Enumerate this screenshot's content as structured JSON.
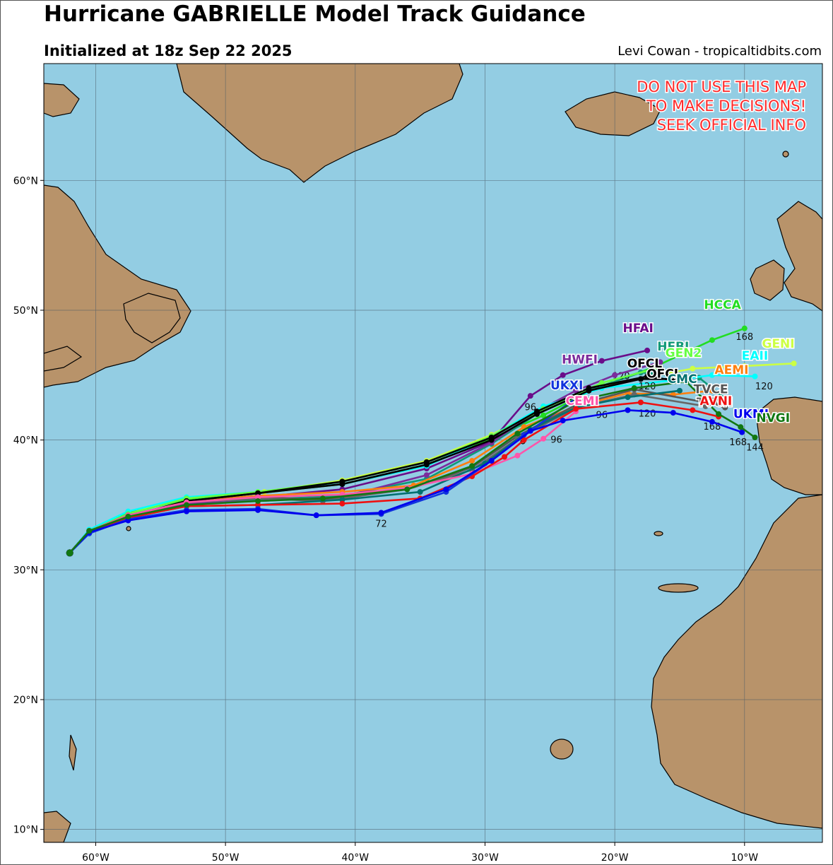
{
  "header": {
    "title": "Hurricane GABRIELLE Model Track Guidance",
    "subtitle": "Initialized at 18z Sep 22 2025",
    "credit": "Levi Cowan - tropicaltidbits.com"
  },
  "warning": {
    "lines": [
      "DO NOT USE THIS MAP",
      "TO MAKE DECISIONS!",
      "SEEK OFFICIAL INFO"
    ],
    "color": "#ff2a2a"
  },
  "colors": {
    "ocean": "#93cde3",
    "land": "#b8936a",
    "coast": "#000000",
    "grid": "#4a5a66"
  },
  "chart_data": {
    "type": "map",
    "lon_range": [
      -64,
      -4
    ],
    "lat_range": [
      9,
      69
    ],
    "grid": true,
    "lon_ticks": [
      {
        "value": -60,
        "label": "60°W"
      },
      {
        "value": -50,
        "label": "50°W"
      },
      {
        "value": -40,
        "label": "40°W"
      },
      {
        "value": -30,
        "label": "30°W"
      },
      {
        "value": -20,
        "label": "20°W"
      },
      {
        "value": -10,
        "label": "10°W"
      }
    ],
    "lat_ticks": [
      {
        "value": 10,
        "label": "10°N"
      },
      {
        "value": 20,
        "label": "20°N"
      },
      {
        "value": 30,
        "label": "30°N"
      },
      {
        "value": 40,
        "label": "40°N"
      },
      {
        "value": 50,
        "label": "50°N"
      },
      {
        "value": 60,
        "label": "60°N"
      }
    ],
    "series": [
      {
        "name": "HCCA",
        "color": "#22dd22",
        "points": [
          [
            -62,
            31.3
          ],
          [
            -60.5,
            33
          ],
          [
            -57.5,
            34.4
          ],
          [
            -53,
            35.4
          ],
          [
            -47.5,
            35.9
          ],
          [
            -41,
            36.6
          ],
          [
            -34.5,
            38.1
          ],
          [
            -29.5,
            40.1
          ],
          [
            -25.5,
            41.9
          ],
          [
            -21.5,
            44
          ],
          [
            -17,
            45.6
          ],
          [
            -12.5,
            47.7
          ],
          [
            -10,
            48.6
          ]
        ],
        "labels": [
          {
            "lon": -10,
            "lat": 47.7,
            "text": "168"
          }
        ],
        "name_pos": [
          -11.7,
          50.1
        ]
      },
      {
        "name": "GENI",
        "color": "#ccff44",
        "points": [
          [
            -62,
            31.3
          ],
          [
            -60.5,
            33
          ],
          [
            -57.5,
            34.3
          ],
          [
            -53,
            35.6
          ],
          [
            -47,
            36
          ],
          [
            -41,
            36.9
          ],
          [
            -34.5,
            38.4
          ],
          [
            -29.5,
            40.4
          ],
          [
            -25.5,
            42.5
          ],
          [
            -20,
            44.4
          ],
          [
            -14,
            45.5
          ],
          [
            -10,
            45.7
          ],
          [
            -6.2,
            45.9
          ]
        ],
        "labels": [],
        "name_pos": [
          -7.4,
          47.1
        ]
      },
      {
        "name": "HFAI",
        "color": "#6a0d8a",
        "points": [
          [
            -62,
            31.3
          ],
          [
            -60.5,
            33
          ],
          [
            -57.5,
            34.2
          ],
          [
            -53,
            35.2
          ],
          [
            -47.5,
            35.6
          ],
          [
            -41,
            36.2
          ],
          [
            -34.5,
            37.8
          ],
          [
            -29.5,
            39.9
          ],
          [
            -26.5,
            43.4
          ],
          [
            -24,
            45
          ],
          [
            -21,
            46.1
          ],
          [
            -17.5,
            46.9
          ]
        ],
        "labels": [
          {
            "lon": -26.5,
            "lat": 42.3,
            "text": "96"
          }
        ],
        "name_pos": [
          -18.2,
          48.3
        ]
      },
      {
        "name": "HFBI",
        "color": "#119977",
        "points": [
          [
            -62,
            31.3
          ],
          [
            -60.5,
            33
          ],
          [
            -57.5,
            34.1
          ],
          [
            -53,
            35
          ],
          [
            -47.5,
            35.4
          ],
          [
            -41,
            35.7
          ],
          [
            -34.5,
            37
          ],
          [
            -29.5,
            39.7
          ],
          [
            -26,
            42
          ],
          [
            -22,
            43.8
          ],
          [
            -18,
            45.2
          ],
          [
            -13.5,
            44.8
          ],
          [
            -11.5,
            43.2
          ]
        ],
        "labels": [
          {
            "lon": -19.5,
            "lat": 44.7,
            "text": "120"
          }
        ],
        "name_pos": [
          -15.5,
          46.9
        ]
      },
      {
        "name": "HWFI",
        "color": "#7b2c9c",
        "points": [
          [
            -62,
            31.3
          ],
          [
            -60.5,
            33
          ],
          [
            -57.5,
            34.1
          ],
          [
            -53,
            35.1
          ],
          [
            -47.5,
            35.3
          ],
          [
            -41,
            35.6
          ],
          [
            -34.5,
            37.3
          ],
          [
            -29.5,
            39.8
          ],
          [
            -26,
            42.2
          ],
          [
            -23,
            43.8
          ],
          [
            -20,
            45
          ],
          [
            -16.5,
            46
          ]
        ],
        "labels": [],
        "name_pos": [
          -22.7,
          45.9
        ]
      },
      {
        "name": "AEMI",
        "color": "#ff7f0e",
        "points": [
          [
            -62,
            31.3
          ],
          [
            -60.5,
            33
          ],
          [
            -57.5,
            34.1
          ],
          [
            -53,
            35.3
          ],
          [
            -47.5,
            35.7
          ],
          [
            -41,
            36
          ],
          [
            -35.5,
            36.5
          ],
          [
            -31,
            38.4
          ],
          [
            -27,
            41
          ],
          [
            -23,
            42.6
          ],
          [
            -19,
            43.6
          ],
          [
            -15.5,
            43.5
          ],
          [
            -12.5,
            43.8
          ]
        ],
        "labels": [
          {
            "lon": -21,
            "lat": 41.7,
            "text": "96"
          }
        ],
        "name_pos": [
          -11,
          45.1
        ]
      },
      {
        "name": "EAII",
        "color": "#00ffff",
        "points": [
          [
            -62,
            31.3
          ],
          [
            -60.5,
            33.1
          ],
          [
            -57.5,
            34.5
          ],
          [
            -53,
            35.6
          ],
          [
            -47.5,
            36
          ],
          [
            -41,
            36.6
          ],
          [
            -34.5,
            38
          ],
          [
            -29.5,
            40.3
          ],
          [
            -25.5,
            42.6
          ],
          [
            -21,
            44
          ],
          [
            -15.5,
            44.6
          ],
          [
            -12.5,
            45
          ],
          [
            -9.2,
            44.9
          ]
        ],
        "labels": [
          {
            "lon": -8.5,
            "lat": 43.9,
            "text": "120"
          }
        ],
        "name_pos": [
          -9.2,
          46.2
        ]
      },
      {
        "name": "GEN2",
        "color": "#66ff44",
        "points": [
          [
            -62,
            31.3
          ],
          [
            -60.5,
            33
          ],
          [
            -57.5,
            34.3
          ],
          [
            -53,
            35.5
          ],
          [
            -47.5,
            36
          ],
          [
            -41,
            36.8
          ],
          [
            -34.5,
            38.3
          ],
          [
            -29.5,
            40.3
          ],
          [
            -25.5,
            42.4
          ],
          [
            -21,
            44.4
          ],
          [
            -16.5,
            45.6
          ]
        ],
        "labels": [],
        "name_pos": [
          -14.7,
          46.4
        ]
      },
      {
        "name": "OFCL",
        "color": "#000000",
        "points": [
          [
            -62,
            31.3
          ],
          [
            -60.5,
            33
          ],
          [
            -57.5,
            34.1
          ],
          [
            -53,
            35.3
          ],
          [
            -47.5,
            35.9
          ],
          [
            -41,
            36.6
          ],
          [
            -34.5,
            38.1
          ],
          [
            -29.5,
            40
          ],
          [
            -26,
            42
          ],
          [
            -22,
            43.8
          ],
          [
            -18,
            44.7
          ],
          [
            -14.8,
            44.7
          ]
        ],
        "labels": [
          {
            "lon": -17.5,
            "lat": 43.9,
            "text": "120"
          }
        ],
        "name_pos": [
          -17.7,
          45.6
        ]
      },
      {
        "name": "OFCL",
        "color": "#000000",
        "points": [
          [
            -62,
            31.3
          ],
          [
            -60.5,
            33
          ],
          [
            -57.5,
            34.1
          ],
          [
            -53,
            35.3
          ],
          [
            -47.5,
            35.9
          ],
          [
            -41,
            36.8
          ],
          [
            -34.5,
            38.3
          ],
          [
            -29.5,
            40.2
          ],
          [
            -26,
            42.2
          ],
          [
            -22,
            44
          ],
          [
            -17.5,
            44.9
          ],
          [
            -15.5,
            44.6
          ]
        ],
        "labels": [],
        "name_pos": [
          -16.2,
          44.8
        ]
      },
      {
        "name": "TVCE",
        "color": "#555555",
        "points": [
          [
            -62,
            31.3
          ],
          [
            -60.5,
            33
          ],
          [
            -57.5,
            34.2
          ],
          [
            -53,
            35.2
          ],
          [
            -47.5,
            35.6
          ],
          [
            -42.5,
            35.4
          ],
          [
            -36,
            36.2
          ],
          [
            -31,
            37.9
          ],
          [
            -27.5,
            40.3
          ],
          [
            -23,
            42.7
          ],
          [
            -18.5,
            43.9
          ],
          [
            -13,
            42.9
          ],
          [
            -11.5,
            42.5
          ]
        ],
        "labels": [
          {
            "lon": -17.5,
            "lat": 41.8,
            "text": "120"
          }
        ],
        "name_pos": [
          -12.6,
          43.6
        ]
      },
      {
        "name": "TVCN",
        "color": "#666666",
        "points": [
          [
            -62,
            31.3
          ],
          [
            -60.5,
            33
          ],
          [
            -57.5,
            34.2
          ],
          [
            -53,
            35.2
          ],
          [
            -47.5,
            35.5
          ],
          [
            -42.5,
            35.3
          ],
          [
            -36,
            36.2
          ],
          [
            -31,
            37.7
          ],
          [
            -27.5,
            40.1
          ],
          [
            -23,
            42.5
          ],
          [
            -18.5,
            43.5
          ],
          [
            -13,
            42.6
          ]
        ],
        "labels": [],
        "name_pos": [
          -12.3,
          42.6
        ]
      },
      {
        "name": "CMC",
        "color": "#007070",
        "points": [
          [
            -62,
            31.3
          ],
          [
            -60.5,
            33
          ],
          [
            -57.5,
            34
          ],
          [
            -53,
            34.9
          ],
          [
            -47.5,
            35
          ],
          [
            -41,
            35.4
          ],
          [
            -35,
            36
          ],
          [
            -30,
            38.2
          ],
          [
            -26.5,
            40.8
          ],
          [
            -23,
            42.5
          ],
          [
            -19,
            43.3
          ],
          [
            -15,
            43.8
          ]
        ],
        "labels": [],
        "name_pos": [
          -14.8,
          44.4
        ]
      },
      {
        "name": "CEMI",
        "color": "#ff55aa",
        "points": [
          [
            -62,
            31.3
          ],
          [
            -60.5,
            33
          ],
          [
            -57.5,
            34.2
          ],
          [
            -53,
            35.2
          ],
          [
            -47.5,
            35.6
          ],
          [
            -41,
            35.8
          ],
          [
            -36,
            36.3
          ],
          [
            -31,
            37.4
          ],
          [
            -27.5,
            38.8
          ],
          [
            -25.5,
            40.1
          ],
          [
            -23,
            42.2
          ]
        ],
        "labels": [
          {
            "lon": -24.5,
            "lat": 39.8,
            "text": "96"
          }
        ],
        "name_pos": [
          -22.5,
          42.7
        ]
      },
      {
        "name": "AVNI",
        "color": "#ee1111",
        "points": [
          [
            -62,
            31.3
          ],
          [
            -60.5,
            33
          ],
          [
            -57.5,
            34
          ],
          [
            -53,
            34.9
          ],
          [
            -47.5,
            35
          ],
          [
            -41,
            35.1
          ],
          [
            -35,
            35.5
          ],
          [
            -31,
            37.2
          ],
          [
            -28.5,
            38.7
          ],
          [
            -27,
            40
          ],
          [
            -23,
            42.4
          ],
          [
            -18,
            42.9
          ],
          [
            -14,
            42.3
          ],
          [
            -12,
            41.8
          ]
        ],
        "labels": [
          {
            "lon": -12.5,
            "lat": 40.8,
            "text": "168"
          }
        ],
        "name_pos": [
          -12.2,
          42.7
        ]
      },
      {
        "name": "UKXI",
        "color": "#1133dd",
        "points": [
          [
            -62,
            31.3
          ],
          [
            -60.5,
            32.8
          ],
          [
            -57.5,
            33.9
          ],
          [
            -53,
            34.6
          ],
          [
            -47.5,
            34.7
          ],
          [
            -43,
            34.2
          ],
          [
            -38,
            34.3
          ],
          [
            -33,
            36
          ],
          [
            -29.5,
            38.4
          ],
          [
            -27,
            40.4
          ],
          [
            -23,
            43.2
          ]
        ],
        "labels": [
          {
            "lon": -38,
            "lat": 33.3,
            "text": "72"
          }
        ],
        "name_pos": [
          -23.7,
          43.9
        ]
      },
      {
        "name": "UKMI",
        "color": "#0000ee",
        "points": [
          [
            -62,
            31.3
          ],
          [
            -60.5,
            32.9
          ],
          [
            -57.5,
            33.8
          ],
          [
            -53,
            34.5
          ],
          [
            -47.5,
            34.6
          ],
          [
            -43,
            34.2
          ],
          [
            -38,
            34.4
          ],
          [
            -33,
            36.2
          ],
          [
            -29.5,
            38.4
          ],
          [
            -26.5,
            40.7
          ],
          [
            -24,
            41.5
          ],
          [
            -19,
            42.3
          ],
          [
            -15.5,
            42.1
          ],
          [
            -12.5,
            41.4
          ],
          [
            -10.2,
            40.6
          ]
        ],
        "labels": [
          {
            "lon": -10.5,
            "lat": 39.6,
            "text": "168"
          }
        ],
        "name_pos": [
          -9.5,
          41.7
        ]
      },
      {
        "name": "NVGI",
        "color": "#117711",
        "points": [
          [
            -62,
            31.3
          ],
          [
            -60.5,
            33
          ],
          [
            -57.5,
            34.1
          ],
          [
            -53,
            35
          ],
          [
            -47.5,
            35.3
          ],
          [
            -42.5,
            35.5
          ],
          [
            -36,
            36.2
          ],
          [
            -31,
            38
          ],
          [
            -27.5,
            40.5
          ],
          [
            -23,
            43
          ],
          [
            -18.5,
            44
          ],
          [
            -14.5,
            44.5
          ],
          [
            -12,
            42
          ],
          [
            -10.3,
            41
          ],
          [
            -9.2,
            40.2
          ]
        ],
        "labels": [
          {
            "lon": -9.2,
            "lat": 39.2,
            "text": "144"
          }
        ],
        "name_pos": [
          -7.8,
          41.4
        ]
      }
    ],
    "warning_text": [
      "DO NOT USE THIS MAP",
      "TO MAKE DECISIONS!",
      "SEEK OFFICIAL INFO"
    ]
  }
}
